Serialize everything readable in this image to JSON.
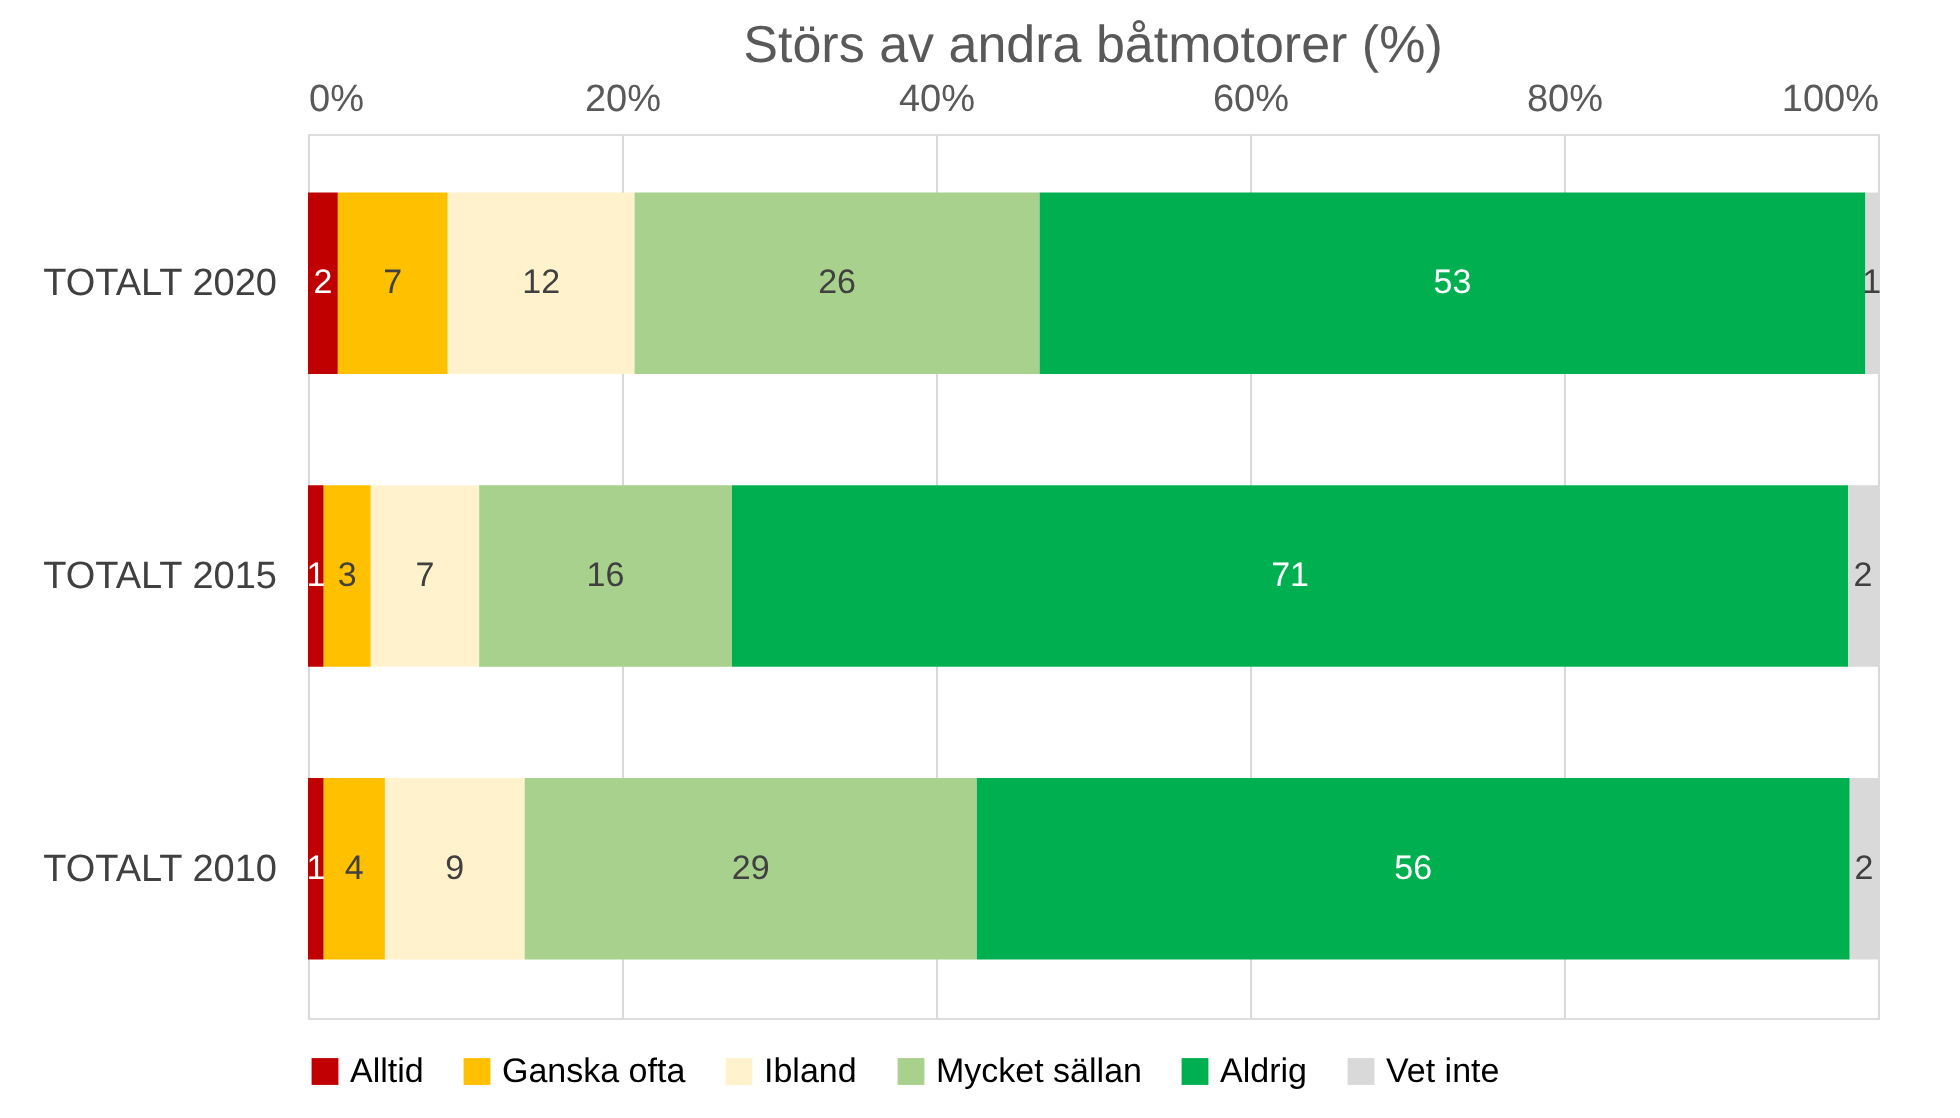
{
  "chart_data": {
    "type": "bar",
    "orientation": "horizontal",
    "stacked": true,
    "title": "Störs av andra båtmotorer (%)",
    "categories": [
      "TOTALT 2020",
      "TOTALT 2015",
      "TOTALT 2010"
    ],
    "series": [
      {
        "name": "Alltid",
        "color": "#c00000",
        "values": [
          1.9,
          1.0,
          1.0
        ],
        "value_labels": [
          "2",
          "1",
          "1"
        ]
      },
      {
        "name": "Ganska ofta",
        "color": "#ffc000",
        "values": [
          7.0,
          3.0,
          3.9
        ],
        "value_labels": [
          "7",
          "3",
          "4"
        ]
      },
      {
        "name": "Ibland",
        "color": "#fff2cc",
        "values": [
          11.9,
          6.9,
          8.9
        ],
        "value_labels": [
          "12",
          "7",
          "9"
        ]
      },
      {
        "name": "Mycket sällan",
        "color": "#a9d18e",
        "values": [
          25.8,
          16.1,
          28.8
        ],
        "value_labels": [
          "26",
          "16",
          "29"
        ]
      },
      {
        "name": "Aldrig",
        "color": "#00b050",
        "values": [
          52.6,
          71.1,
          55.6
        ],
        "value_labels": [
          "53",
          "71",
          "56"
        ]
      },
      {
        "name": "Vet inte",
        "color": "#d9d9d9",
        "values": [
          0.8,
          1.9,
          1.8
        ],
        "value_labels": [
          "1",
          "2",
          "2"
        ]
      }
    ],
    "xlim": [
      0,
      100
    ],
    "xticks": [
      {
        "value": 0,
        "label": "0%"
      },
      {
        "value": 20,
        "label": "20%"
      },
      {
        "value": 40,
        "label": "40%"
      },
      {
        "value": 60,
        "label": "60%"
      },
      {
        "value": 80,
        "label": "80%"
      },
      {
        "value": 100,
        "label": "100%"
      }
    ],
    "grid": "x",
    "legend": "bottom"
  }
}
